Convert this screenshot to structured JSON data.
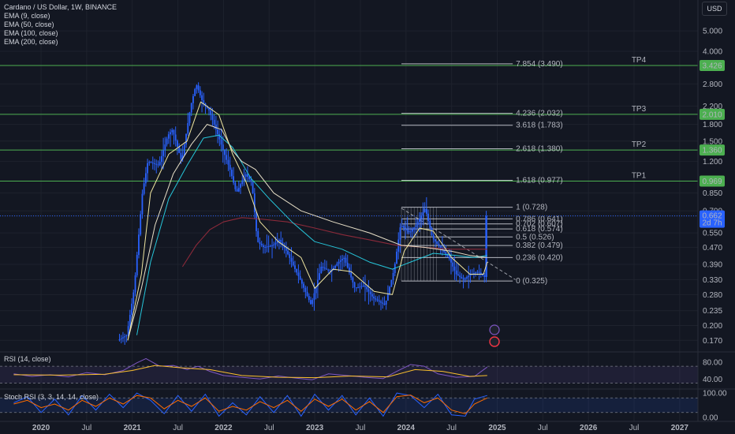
{
  "header": {
    "title": "Cardano / US Dollar, 1W, BINANCE",
    "indicators": [
      "EMA (9, close)",
      "EMA (50, close)",
      "EMA (100, close)",
      "EMA (200, close)"
    ],
    "currency": "USD"
  },
  "colors": {
    "background": "#131722",
    "candle": "#2962ff",
    "tp_line": "#4caf50",
    "fib_line": "#d1d4dc",
    "ema9": "#f0e6a0",
    "ema50": "#e8e0c8",
    "ema100": "#26c6da",
    "ema200": "#8b2a3a",
    "rsi": "#7e57c2",
    "rsi_ma": "#fbc02d",
    "stoch_k": "#2962ff",
    "stoch_d": "#ff6d00",
    "price_label": "#2962ff"
  },
  "chart_data": {
    "type": "candlestick",
    "symbol": "Cardano / US Dollar",
    "interval": "1W",
    "exchange": "BINANCE",
    "y_scale": "log",
    "ylim": [
      0.155,
      6.0
    ],
    "xlim": [
      2019.55,
      2027.2
    ],
    "y_ticks": [
      5.0,
      4.0,
      3.426,
      2.8,
      2.2,
      2.01,
      1.8,
      1.5,
      1.36,
      1.2,
      0.969,
      0.85,
      0.7,
      0.662,
      0.55,
      0.47,
      0.39,
      0.33,
      0.28,
      0.235,
      0.2,
      0.17
    ],
    "y_tick_labels": [
      "5.000",
      "4.000",
      "3.426",
      "2.800",
      "2.200",
      "2.010",
      "1.800",
      "1.500",
      "1.360",
      "1.200",
      "0.969",
      "0.850",
      "0.700",
      "0.662",
      "0.550",
      "0.470",
      "0.390",
      "0.330",
      "0.280",
      "0.235",
      "0.200",
      "0.170"
    ],
    "x_ticks": [
      {
        "t": 2020.0,
        "label": "2020"
      },
      {
        "t": 2020.5,
        "label": "Jul"
      },
      {
        "t": 2021.0,
        "label": "2021"
      },
      {
        "t": 2021.5,
        "label": "Jul"
      },
      {
        "t": 2022.0,
        "label": "2022"
      },
      {
        "t": 2022.5,
        "label": "Jul"
      },
      {
        "t": 2023.0,
        "label": "2023"
      },
      {
        "t": 2023.5,
        "label": "Jul"
      },
      {
        "t": 2024.0,
        "label": "2024"
      },
      {
        "t": 2024.5,
        "label": "Jul"
      },
      {
        "t": 2025.0,
        "label": "2025"
      },
      {
        "t": 2025.5,
        "label": "Jul"
      },
      {
        "t": 2026.0,
        "label": "2026"
      },
      {
        "t": 2026.5,
        "label": "Jul"
      },
      {
        "t": 2027.0,
        "label": "2027"
      }
    ],
    "price_path": [
      [
        2020.85,
        0.17
      ],
      [
        2020.95,
        0.18
      ],
      [
        2021.03,
        0.3
      ],
      [
        2021.12,
        0.85
      ],
      [
        2021.18,
        1.2
      ],
      [
        2021.3,
        1.15
      ],
      [
        2021.4,
        1.6
      ],
      [
        2021.45,
        1.7
      ],
      [
        2021.55,
        1.2
      ],
      [
        2021.65,
        2.2
      ],
      [
        2021.71,
        2.8
      ],
      [
        2021.78,
        2.3
      ],
      [
        2021.85,
        2.1
      ],
      [
        2021.95,
        1.6
      ],
      [
        2022.02,
        1.3
      ],
      [
        2022.08,
        1.1
      ],
      [
        2022.15,
        0.85
      ],
      [
        2022.25,
        1.05
      ],
      [
        2022.32,
        0.95
      ],
      [
        2022.38,
        0.5
      ],
      [
        2022.45,
        0.47
      ],
      [
        2022.55,
        0.48
      ],
      [
        2022.62,
        0.51
      ],
      [
        2022.7,
        0.45
      ],
      [
        2022.78,
        0.38
      ],
      [
        2022.85,
        0.33
      ],
      [
        2022.97,
        0.25
      ],
      [
        2023.08,
        0.38
      ],
      [
        2023.18,
        0.36
      ],
      [
        2023.27,
        0.4
      ],
      [
        2023.33,
        0.42
      ],
      [
        2023.45,
        0.3
      ],
      [
        2023.55,
        0.31
      ],
      [
        2023.65,
        0.27
      ],
      [
        2023.78,
        0.25
      ],
      [
        2023.88,
        0.37
      ],
      [
        2023.95,
        0.6
      ],
      [
        2024.05,
        0.55
      ],
      [
        2024.12,
        0.6
      ],
      [
        2024.22,
        0.72
      ],
      [
        2024.3,
        0.52
      ],
      [
        2024.4,
        0.46
      ],
      [
        2024.48,
        0.42
      ],
      [
        2024.56,
        0.35
      ],
      [
        2024.64,
        0.33
      ],
      [
        2024.72,
        0.35
      ],
      [
        2024.8,
        0.36
      ],
      [
        2024.87,
        0.34
      ],
      [
        2024.89,
        0.662
      ]
    ],
    "ema200_path": [
      [
        2021.55,
        0.38
      ],
      [
        2021.7,
        0.48
      ],
      [
        2021.85,
        0.57
      ],
      [
        2022.0,
        0.62
      ],
      [
        2022.2,
        0.65
      ],
      [
        2022.4,
        0.64
      ],
      [
        2022.7,
        0.62
      ],
      [
        2023.0,
        0.58
      ],
      [
        2023.3,
        0.54
      ],
      [
        2023.6,
        0.51
      ],
      [
        2023.9,
        0.48
      ],
      [
        2024.2,
        0.47
      ],
      [
        2024.5,
        0.46
      ],
      [
        2024.8,
        0.46
      ],
      [
        2024.89,
        0.46
      ]
    ],
    "ema100_path": [
      [
        2021.05,
        0.18
      ],
      [
        2021.2,
        0.4
      ],
      [
        2021.4,
        0.8
      ],
      [
        2021.6,
        1.15
      ],
      [
        2021.78,
        1.55
      ],
      [
        2021.95,
        1.6
      ],
      [
        2022.1,
        1.4
      ],
      [
        2022.3,
        1.0
      ],
      [
        2022.5,
        0.8
      ],
      [
        2022.75,
        0.62
      ],
      [
        2023.0,
        0.5
      ],
      [
        2023.3,
        0.46
      ],
      [
        2023.6,
        0.4
      ],
      [
        2023.85,
        0.37
      ],
      [
        2024.05,
        0.4
      ],
      [
        2024.3,
        0.44
      ],
      [
        2024.55,
        0.43
      ],
      [
        2024.75,
        0.42
      ],
      [
        2024.89,
        0.43
      ]
    ],
    "ema50_path": [
      [
        2020.95,
        0.17
      ],
      [
        2021.1,
        0.3
      ],
      [
        2021.25,
        0.6
      ],
      [
        2021.45,
        1.05
      ],
      [
        2021.65,
        1.45
      ],
      [
        2021.82,
        1.8
      ],
      [
        2021.98,
        1.7
      ],
      [
        2022.1,
        1.35
      ],
      [
        2022.2,
        1.2
      ],
      [
        2022.35,
        1.1
      ],
      [
        2022.55,
        0.85
      ],
      [
        2022.85,
        0.7
      ],
      [
        2023.2,
        0.62
      ],
      [
        2023.6,
        0.55
      ],
      [
        2023.95,
        0.48
      ],
      [
        2024.2,
        0.47
      ],
      [
        2024.5,
        0.45
      ],
      [
        2024.7,
        0.43
      ],
      [
        2024.89,
        0.42
      ]
    ],
    "ema9_path": [
      [
        2020.95,
        0.17
      ],
      [
        2021.1,
        0.35
      ],
      [
        2021.2,
        0.85
      ],
      [
        2021.4,
        1.3
      ],
      [
        2021.6,
        1.5
      ],
      [
        2021.75,
        2.3
      ],
      [
        2021.95,
        2.0
      ],
      [
        2022.1,
        1.3
      ],
      [
        2022.25,
        0.95
      ],
      [
        2022.4,
        0.62
      ],
      [
        2022.6,
        0.5
      ],
      [
        2022.85,
        0.42
      ],
      [
        2023.0,
        0.3
      ],
      [
        2023.2,
        0.37
      ],
      [
        2023.4,
        0.36
      ],
      [
        2023.65,
        0.29
      ],
      [
        2023.85,
        0.28
      ],
      [
        2023.98,
        0.45
      ],
      [
        2024.15,
        0.58
      ],
      [
        2024.3,
        0.56
      ],
      [
        2024.5,
        0.42
      ],
      [
        2024.7,
        0.35
      ],
      [
        2024.85,
        0.35
      ],
      [
        2024.89,
        0.4
      ]
    ],
    "trendline": [
      [
        2023.95,
        0.72
      ],
      [
        2025.2,
        0.33
      ]
    ],
    "take_profit_lines": [
      {
        "label": "TP1",
        "price": 0.969,
        "price_label": "0.969"
      },
      {
        "label": "TP2",
        "price": 1.36,
        "price_label": "1.360"
      },
      {
        "label": "TP3",
        "price": 2.01,
        "price_label": "2.010"
      },
      {
        "label": "TP4",
        "price": 3.426,
        "price_label": "3.426"
      }
    ],
    "fibonacci": {
      "x_start": 2023.95,
      "x_end": 2025.17,
      "levels": [
        {
          "label": "7.854 (3.490)",
          "price": 3.49
        },
        {
          "label": "4.236 (2.032)",
          "price": 2.032
        },
        {
          "label": "3.618 (1.783)",
          "price": 1.783
        },
        {
          "label": "2.618 (1.380)",
          "price": 1.38
        },
        {
          "label": "1.618 (0.977)",
          "price": 0.977
        },
        {
          "label": "1 (0.728)",
          "price": 0.728
        },
        {
          "label": "0.786 (0.641)",
          "price": 0.641
        },
        {
          "label": "0.702 (0.607)",
          "price": 0.607
        },
        {
          "label": "0.618 (0.574)",
          "price": 0.574
        },
        {
          "label": "0.5 (0.526)",
          "price": 0.526
        },
        {
          "label": "0.382 (0.479)",
          "price": 0.479
        },
        {
          "label": "0.236 (0.420)",
          "price": 0.42
        },
        {
          "label": "0 (0.325)",
          "price": 0.325
        }
      ]
    },
    "current_price": {
      "price": 0.662,
      "value": "0.662",
      "countdown": "2d 7h"
    },
    "rsi": {
      "label": "RSI (14, close)",
      "ylim": [
        20,
        100
      ],
      "ticks": [
        80.0,
        40.0
      ],
      "tick_labels": [
        "80.00",
        "40.00"
      ],
      "band": [
        70,
        30
      ],
      "path": [
        [
          2019.7,
          52
        ],
        [
          2019.9,
          46
        ],
        [
          2020.1,
          50
        ],
        [
          2020.3,
          45
        ],
        [
          2020.5,
          55
        ],
        [
          2020.7,
          50
        ],
        [
          2020.9,
          60
        ],
        [
          2021.05,
          78
        ],
        [
          2021.15,
          88
        ],
        [
          2021.3,
          70
        ],
        [
          2021.45,
          72
        ],
        [
          2021.6,
          62
        ],
        [
          2021.72,
          70
        ],
        [
          2021.85,
          58
        ],
        [
          2022.0,
          48
        ],
        [
          2022.2,
          44
        ],
        [
          2022.4,
          40
        ],
        [
          2022.6,
          47
        ],
        [
          2022.8,
          42
        ],
        [
          2022.97,
          38
        ],
        [
          2023.15,
          52
        ],
        [
          2023.35,
          48
        ],
        [
          2023.55,
          44
        ],
        [
          2023.75,
          41
        ],
        [
          2023.9,
          58
        ],
        [
          2024.05,
          74
        ],
        [
          2024.2,
          70
        ],
        [
          2024.35,
          52
        ],
        [
          2024.55,
          44
        ],
        [
          2024.75,
          46
        ],
        [
          2024.89,
          68
        ]
      ],
      "ma_path": [
        [
          2019.7,
          50
        ],
        [
          2020.2,
          49
        ],
        [
          2020.7,
          51
        ],
        [
          2021.0,
          60
        ],
        [
          2021.25,
          72
        ],
        [
          2021.55,
          66
        ],
        [
          2021.85,
          62
        ],
        [
          2022.2,
          48
        ],
        [
          2022.6,
          44
        ],
        [
          2023.0,
          43
        ],
        [
          2023.4,
          47
        ],
        [
          2023.8,
          45
        ],
        [
          2024.1,
          62
        ],
        [
          2024.4,
          58
        ],
        [
          2024.7,
          46
        ],
        [
          2024.89,
          48
        ]
      ]
    },
    "stoch_rsi": {
      "label": "Stoch RSI (3, 3, 14, 14, close)",
      "ylim": [
        -10,
        110
      ],
      "ticks": [
        100.0,
        0.0
      ],
      "tick_labels": [
        "100.00",
        "0.00"
      ],
      "band": [
        80,
        20
      ],
      "k_path": [
        [
          2019.7,
          60
        ],
        [
          2019.85,
          85
        ],
        [
          2020.0,
          20
        ],
        [
          2020.15,
          75
        ],
        [
          2020.3,
          10
        ],
        [
          2020.45,
          90
        ],
        [
          2020.6,
          30
        ],
        [
          2020.75,
          95
        ],
        [
          2020.9,
          40
        ],
        [
          2021.05,
          100
        ],
        [
          2021.2,
          70
        ],
        [
          2021.35,
          15
        ],
        [
          2021.5,
          90
        ],
        [
          2021.65,
          25
        ],
        [
          2021.8,
          95
        ],
        [
          2021.95,
          5
        ],
        [
          2022.1,
          60
        ],
        [
          2022.25,
          10
        ],
        [
          2022.4,
          85
        ],
        [
          2022.55,
          20
        ],
        [
          2022.7,
          90
        ],
        [
          2022.85,
          5
        ],
        [
          2023.0,
          95
        ],
        [
          2023.15,
          30
        ],
        [
          2023.3,
          90
        ],
        [
          2023.45,
          10
        ],
        [
          2023.6,
          80
        ],
        [
          2023.75,
          5
        ],
        [
          2023.9,
          100
        ],
        [
          2024.05,
          90
        ],
        [
          2024.2,
          40
        ],
        [
          2024.35,
          95
        ],
        [
          2024.5,
          10
        ],
        [
          2024.65,
          5
        ],
        [
          2024.75,
          75
        ],
        [
          2024.89,
          90
        ]
      ],
      "d_path": [
        [
          2019.7,
          55
        ],
        [
          2019.85,
          70
        ],
        [
          2020.0,
          40
        ],
        [
          2020.15,
          55
        ],
        [
          2020.3,
          30
        ],
        [
          2020.45,
          70
        ],
        [
          2020.6,
          45
        ],
        [
          2020.75,
          80
        ],
        [
          2020.9,
          55
        ],
        [
          2021.05,
          90
        ],
        [
          2021.2,
          80
        ],
        [
          2021.35,
          35
        ],
        [
          2021.5,
          70
        ],
        [
          2021.65,
          45
        ],
        [
          2021.8,
          80
        ],
        [
          2021.95,
          25
        ],
        [
          2022.1,
          45
        ],
        [
          2022.25,
          30
        ],
        [
          2022.4,
          65
        ],
        [
          2022.55,
          40
        ],
        [
          2022.7,
          70
        ],
        [
          2022.85,
          25
        ],
        [
          2023.0,
          75
        ],
        [
          2023.15,
          45
        ],
        [
          2023.3,
          75
        ],
        [
          2023.45,
          30
        ],
        [
          2023.6,
          65
        ],
        [
          2023.75,
          20
        ],
        [
          2023.9,
          85
        ],
        [
          2024.05,
          92
        ],
        [
          2024.2,
          60
        ],
        [
          2024.35,
          80
        ],
        [
          2024.5,
          30
        ],
        [
          2024.65,
          15
        ],
        [
          2024.75,
          55
        ],
        [
          2024.89,
          80
        ]
      ]
    }
  }
}
